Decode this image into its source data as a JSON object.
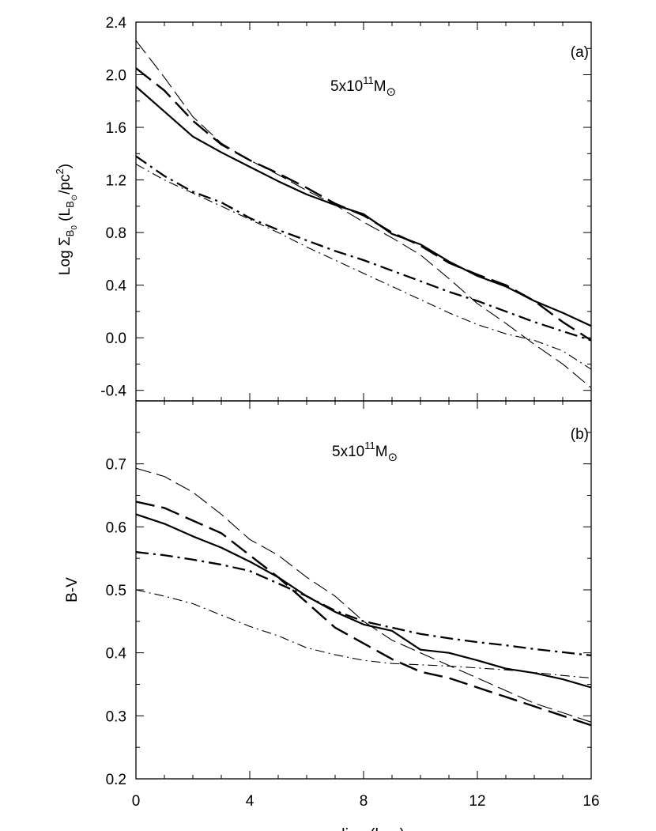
{
  "figure": {
    "xlabel": "radius (kpc)",
    "x_ticks": [
      "0",
      "4",
      "8",
      "12",
      "16"
    ]
  },
  "chart_data": [
    {
      "type": "line",
      "panel": "(a)",
      "annotation": "5x10^11 M_sun",
      "annotation_parts": {
        "base": "5x10",
        "exp": "11",
        "unit": "M",
        "sun": "⊙"
      },
      "ylabel": "Log Σ_B0 (L_B⊙/pc²)",
      "ylabel_parts": {
        "log": "Log Σ",
        "sub1": "B",
        "sub2": "0",
        "open": " (L",
        "sub3": "B",
        "sun": "⊙",
        "mid": "/pc",
        "sup": "2",
        "close": ")"
      },
      "xlim": [
        0,
        16
      ],
      "ylim": [
        -0.48,
        2.4
      ],
      "y_ticks": [
        "2.4",
        "2.0",
        "1.6",
        "1.2",
        "0.8",
        "0.4",
        "0.0",
        "-0.4"
      ],
      "x": [
        0,
        1,
        2,
        3,
        4,
        5,
        6,
        7,
        8,
        9,
        10,
        11,
        12,
        13,
        14,
        15,
        16
      ],
      "series": [
        {
          "name": "thin-long-dash",
          "style": "thin-dash",
          "values": [
            2.26,
            1.98,
            1.68,
            1.48,
            1.35,
            1.24,
            1.12,
            1.01,
            0.88,
            0.76,
            0.63,
            0.45,
            0.26,
            0.11,
            -0.05,
            -0.2,
            -0.38
          ]
        },
        {
          "name": "thick-long-dash",
          "style": "thick-dash",
          "values": [
            2.05,
            1.88,
            1.65,
            1.47,
            1.35,
            1.25,
            1.14,
            1.02,
            0.93,
            0.8,
            0.7,
            0.57,
            0.48,
            0.4,
            0.28,
            0.12,
            -0.02
          ]
        },
        {
          "name": "thick-solid",
          "style": "thick-solid",
          "values": [
            1.91,
            1.72,
            1.53,
            1.41,
            1.3,
            1.19,
            1.09,
            1.01,
            0.94,
            0.79,
            0.71,
            0.58,
            0.47,
            0.39,
            0.28,
            0.19,
            0.09
          ]
        },
        {
          "name": "thick-dash-dot",
          "style": "thick-dashdot",
          "values": [
            1.38,
            1.23,
            1.11,
            1.03,
            0.91,
            0.82,
            0.74,
            0.66,
            0.59,
            0.51,
            0.43,
            0.35,
            0.28,
            0.2,
            0.12,
            0.05,
            -0.02
          ]
        },
        {
          "name": "thin-dash-dot",
          "style": "thin-dashdot",
          "values": [
            1.32,
            1.2,
            1.1,
            1.0,
            0.9,
            0.8,
            0.69,
            0.59,
            0.49,
            0.39,
            0.29,
            0.19,
            0.1,
            0.03,
            -0.02,
            -0.1,
            -0.24
          ]
        }
      ]
    },
    {
      "type": "line",
      "panel": "(b)",
      "annotation": "5x10^11 M_sun",
      "annotation_parts": {
        "base": "5x10",
        "exp": "11",
        "unit": "M",
        "sun": "⊙"
      },
      "ylabel": "B-V",
      "xlim": [
        0,
        16
      ],
      "ylim": [
        0.2,
        0.8
      ],
      "y_ticks": [
        "0.7",
        "0.6",
        "0.5",
        "0.4",
        "0.3",
        "0.2"
      ],
      "x": [
        0,
        1,
        2,
        3,
        4,
        5,
        6,
        7,
        8,
        9,
        10,
        11,
        12,
        13,
        14,
        15,
        16
      ],
      "series": [
        {
          "name": "thin-long-dash",
          "style": "thin-dash",
          "values": [
            0.693,
            0.68,
            0.655,
            0.62,
            0.58,
            0.555,
            0.52,
            0.49,
            0.45,
            0.42,
            0.4,
            0.38,
            0.36,
            0.34,
            0.32,
            0.305,
            0.29
          ]
        },
        {
          "name": "thick-long-dash",
          "style": "thick-dash",
          "values": [
            0.64,
            0.63,
            0.61,
            0.59,
            0.555,
            0.52,
            0.48,
            0.44,
            0.415,
            0.39,
            0.37,
            0.36,
            0.345,
            0.33,
            0.315,
            0.3,
            0.285
          ]
        },
        {
          "name": "thick-solid",
          "style": "thick-solid",
          "values": [
            0.62,
            0.605,
            0.585,
            0.567,
            0.545,
            0.52,
            0.49,
            0.465,
            0.445,
            0.435,
            0.405,
            0.4,
            0.388,
            0.375,
            0.368,
            0.358,
            0.345
          ]
        },
        {
          "name": "thick-dash-dot",
          "style": "thick-dashdot",
          "values": [
            0.56,
            0.555,
            0.548,
            0.54,
            0.53,
            0.51,
            0.49,
            0.467,
            0.45,
            0.44,
            0.43,
            0.423,
            0.417,
            0.412,
            0.406,
            0.401,
            0.396
          ]
        },
        {
          "name": "thin-dash-dot",
          "style": "thin-dashdot",
          "values": [
            0.5,
            0.49,
            0.478,
            0.46,
            0.442,
            0.427,
            0.408,
            0.397,
            0.388,
            0.383,
            0.381,
            0.379,
            0.376,
            0.373,
            0.369,
            0.364,
            0.36
          ]
        }
      ]
    }
  ]
}
